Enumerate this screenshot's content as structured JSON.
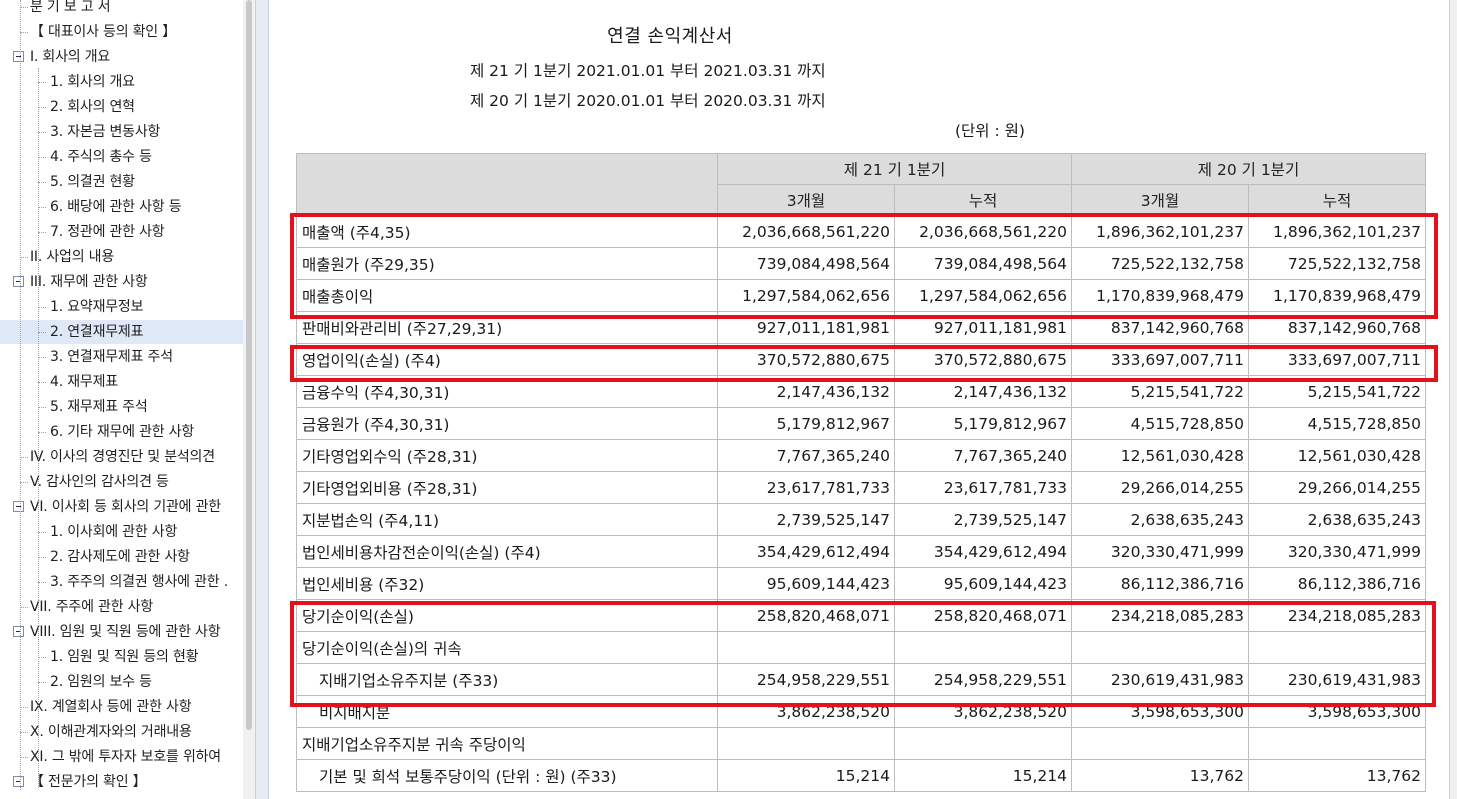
{
  "sidebar": {
    "items": [
      {
        "label": "분 기 보 고 서",
        "level": 0,
        "expanded": null
      },
      {
        "label": "【 대표이사 등의 확인 】",
        "level": 1,
        "expanded": null
      },
      {
        "label": "I. 회사의 개요",
        "level": 0,
        "expanded": true
      },
      {
        "label": "1. 회사의 개요",
        "level": 2,
        "expanded": null
      },
      {
        "label": "2. 회사의 연혁",
        "level": 2,
        "expanded": null
      },
      {
        "label": "3. 자본금 변동사항",
        "level": 2,
        "expanded": null
      },
      {
        "label": "4. 주식의 총수 등",
        "level": 2,
        "expanded": null
      },
      {
        "label": "5. 의결권 현황",
        "level": 2,
        "expanded": null
      },
      {
        "label": "6. 배당에 관한 사항 등",
        "level": 2,
        "expanded": null
      },
      {
        "label": "7. 정관에 관한 사항",
        "level": 2,
        "expanded": null
      },
      {
        "label": "II. 사업의 내용",
        "level": 1,
        "expanded": null
      },
      {
        "label": "III. 재무에 관한 사항",
        "level": 0,
        "expanded": true
      },
      {
        "label": "1. 요약재무정보",
        "level": 2,
        "expanded": null
      },
      {
        "label": "2. 연결재무제표",
        "level": 2,
        "expanded": null
      },
      {
        "label": "3. 연결재무제표 주석",
        "level": 2,
        "expanded": null
      },
      {
        "label": "4. 재무제표",
        "level": 2,
        "expanded": null
      },
      {
        "label": "5. 재무제표 주석",
        "level": 2,
        "expanded": null
      },
      {
        "label": "6. 기타 재무에 관한 사항",
        "level": 2,
        "expanded": null
      },
      {
        "label": "IV. 이사의 경영진단 및 분석의견",
        "level": 1,
        "expanded": null
      },
      {
        "label": "V. 감사인의 감사의견 등",
        "level": 1,
        "expanded": null
      },
      {
        "label": "VI. 이사회 등 회사의 기관에 관한",
        "level": 0,
        "expanded": true
      },
      {
        "label": "1. 이사회에 관한 사항",
        "level": 2,
        "expanded": null
      },
      {
        "label": "2. 감사제도에 관한 사항",
        "level": 2,
        "expanded": null
      },
      {
        "label": "3. 주주의 의결권 행사에 관한 .",
        "level": 2,
        "expanded": null
      },
      {
        "label": "VII. 주주에 관한 사항",
        "level": 1,
        "expanded": null
      },
      {
        "label": "VIII. 임원 및 직원 등에 관한 사항",
        "level": 0,
        "expanded": true
      },
      {
        "label": "1. 임원 및 직원 등의 현황",
        "level": 2,
        "expanded": null
      },
      {
        "label": "2. 임원의 보수 등",
        "level": 2,
        "expanded": null
      },
      {
        "label": "IX. 계열회사 등에 관한 사항",
        "level": 1,
        "expanded": null
      },
      {
        "label": "X. 이해관계자와의 거래내용",
        "level": 1,
        "expanded": null
      },
      {
        "label": "XI. 그 밖에 투자자 보호를 위하여",
        "level": 1,
        "expanded": null
      },
      {
        "label": "【 전문가의 확인 】",
        "level": 0,
        "expanded": true
      }
    ],
    "selected_index": 13
  },
  "document": {
    "title": "연결 손익계산서",
    "period_current": "제 21 기 1분기 2021.01.01 부터 2021.03.31 까지",
    "period_prior": "제 20 기 1분기 2020.01.01 부터 2020.03.31 까지",
    "unit": "(단위 : 원)"
  },
  "table": {
    "group_headers": [
      "제 21 기 1분기",
      "제 20 기 1분기"
    ],
    "sub_headers": [
      "3개월",
      "누적",
      "3개월",
      "누적"
    ],
    "rows": [
      {
        "label": "매출액 (주4,35)",
        "indent": false,
        "values": [
          "2,036,668,561,220",
          "2,036,668,561,220",
          "1,896,362,101,237",
          "1,896,362,101,237"
        ]
      },
      {
        "label": "매출원가 (주29,35)",
        "indent": false,
        "values": [
          "739,084,498,564",
          "739,084,498,564",
          "725,522,132,758",
          "725,522,132,758"
        ]
      },
      {
        "label": "매출총이익",
        "indent": false,
        "values": [
          "1,297,584,062,656",
          "1,297,584,062,656",
          "1,170,839,968,479",
          "1,170,839,968,479"
        ]
      },
      {
        "label": "판매비와관리비 (주27,29,31)",
        "indent": false,
        "values": [
          "927,011,181,981",
          "927,011,181,981",
          "837,142,960,768",
          "837,142,960,768"
        ]
      },
      {
        "label": "영업이익(손실) (주4)",
        "indent": false,
        "values": [
          "370,572,880,675",
          "370,572,880,675",
          "333,697,007,711",
          "333,697,007,711"
        ]
      },
      {
        "label": "금융수익 (주4,30,31)",
        "indent": false,
        "values": [
          "2,147,436,132",
          "2,147,436,132",
          "5,215,541,722",
          "5,215,541,722"
        ]
      },
      {
        "label": "금융원가 (주4,30,31)",
        "indent": false,
        "values": [
          "5,179,812,967",
          "5,179,812,967",
          "4,515,728,850",
          "4,515,728,850"
        ]
      },
      {
        "label": "기타영업외수익 (주28,31)",
        "indent": false,
        "values": [
          "7,767,365,240",
          "7,767,365,240",
          "12,561,030,428",
          "12,561,030,428"
        ]
      },
      {
        "label": "기타영업외비용 (주28,31)",
        "indent": false,
        "values": [
          "23,617,781,733",
          "23,617,781,733",
          "29,266,014,255",
          "29,266,014,255"
        ]
      },
      {
        "label": "지분법손익 (주4,11)",
        "indent": false,
        "values": [
          "2,739,525,147",
          "2,739,525,147",
          "2,638,635,243",
          "2,638,635,243"
        ]
      },
      {
        "label": "법인세비용차감전순이익(손실) (주4)",
        "indent": false,
        "values": [
          "354,429,612,494",
          "354,429,612,494",
          "320,330,471,999",
          "320,330,471,999"
        ]
      },
      {
        "label": "법인세비용 (주32)",
        "indent": false,
        "values": [
          "95,609,144,423",
          "95,609,144,423",
          "86,112,386,716",
          "86,112,386,716"
        ]
      },
      {
        "label": "당기순이익(손실)",
        "indent": false,
        "values": [
          "258,820,468,071",
          "258,820,468,071",
          "234,218,085,283",
          "234,218,085,283"
        ]
      },
      {
        "label": "당기순이익(손실)의 귀속",
        "indent": false,
        "values": [
          "",
          "",
          "",
          ""
        ]
      },
      {
        "label": "지배기업소유주지분 (주33)",
        "indent": true,
        "values": [
          "254,958,229,551",
          "254,958,229,551",
          "230,619,431,983",
          "230,619,431,983"
        ]
      },
      {
        "label": "비지배지분",
        "indent": true,
        "values": [
          "3,862,238,520",
          "3,862,238,520",
          "3,598,653,300",
          "3,598,653,300"
        ]
      },
      {
        "label": "지배기업소유주지분 귀속 주당이익",
        "indent": false,
        "values": [
          "",
          "",
          "",
          ""
        ]
      },
      {
        "label": "기본 및 희석 보통주당이익 (단위 : 원) (주33)",
        "indent": true,
        "values": [
          "15,214",
          "15,214",
          "13,762",
          "13,762"
        ]
      }
    ]
  },
  "colors": {
    "highlight": "#e3111b",
    "header_bg": "#dcdcdc",
    "selected_bg": "#dfe8f6"
  }
}
